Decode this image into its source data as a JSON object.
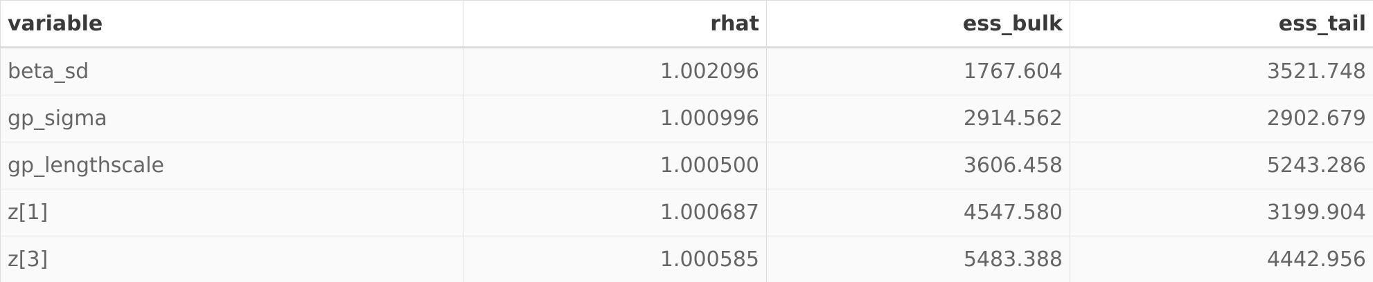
{
  "table": {
    "headers": [
      "variable",
      "rhat",
      "ess_bulk",
      "ess_tail"
    ],
    "rows": [
      [
        "beta_sd",
        "1.002096",
        "1767.604",
        "3521.748"
      ],
      [
        "gp_sigma",
        "1.000996",
        "2914.562",
        "2902.679"
      ],
      [
        "gp_lengthscale",
        "1.000500",
        "3606.458",
        "5243.286"
      ],
      [
        "z[1]",
        "1.000687",
        "4547.580",
        "3199.904"
      ],
      [
        "z[3]",
        "1.000585",
        "5483.388",
        "4442.956"
      ]
    ]
  }
}
